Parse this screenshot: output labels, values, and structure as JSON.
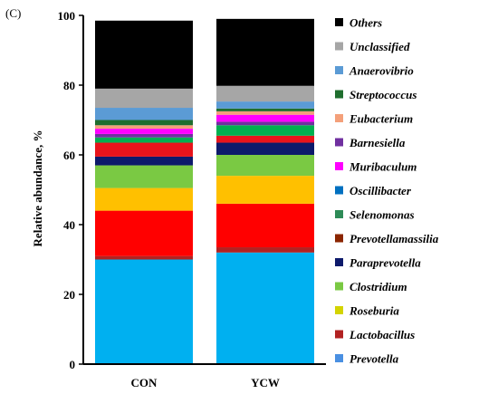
{
  "panel_label": "(C)",
  "chart_data": {
    "type": "bar",
    "stacked": true,
    "categories": [
      "CON",
      "YCW"
    ],
    "ylabel": "Relative abundance, %",
    "ylim": [
      0,
      100
    ],
    "yticks": [
      0,
      20,
      40,
      60,
      80,
      100
    ],
    "legend_position": "right",
    "series": [
      {
        "name": "Prevotella",
        "color": "#00b0f0",
        "values": [
          30.0,
          32.0
        ]
      },
      {
        "name": "Lactobacillus",
        "color": "#b22222",
        "values": [
          1.0,
          1.5
        ]
      },
      {
        "name": "Roseburia",
        "color": "#ff0000",
        "values": [
          13.0,
          12.5
        ]
      },
      {
        "name": "Clostridium",
        "color": "#ffc000",
        "values": [
          6.5,
          8.0
        ]
      },
      {
        "name": "Paraprevotella",
        "color": "#7ac943",
        "values": [
          6.5,
          6.0
        ]
      },
      {
        "name": "Prevotellamassilia",
        "color": "#0d1a6b",
        "values": [
          2.5,
          3.5
        ]
      },
      {
        "name": "Selenomonas",
        "color": "#e8141b",
        "values": [
          4.0,
          2.0
        ]
      },
      {
        "name": "Oscillibacter",
        "color": "#00b050",
        "values": [
          1.5,
          3.0
        ]
      },
      {
        "name": "Muribaculum",
        "color": "#7030a0",
        "values": [
          1.0,
          1.0
        ]
      },
      {
        "name": "Barnesiella",
        "color": "#ff00ff",
        "values": [
          1.5,
          2.0
        ]
      },
      {
        "name": "Eubacterium",
        "color": "#f4a07a",
        "values": [
          1.0,
          1.0
        ]
      },
      {
        "name": "Streptococcus",
        "color": "#1f6e2e",
        "values": [
          1.5,
          0.8
        ]
      },
      {
        "name": "Anaerovibrio",
        "color": "#5b9bd5",
        "values": [
          3.5,
          2.0
        ]
      },
      {
        "name": "Unclassified",
        "color": "#a6a6a6",
        "values": [
          5.5,
          4.5
        ]
      },
      {
        "name": "Others",
        "color": "#000000",
        "values": [
          19.5,
          19.2
        ]
      }
    ],
    "legend": [
      {
        "label": "Others",
        "color": "#000000"
      },
      {
        "label": "Unclassified",
        "color": "#a6a6a6"
      },
      {
        "label": "Anaerovibrio",
        "color": "#5b9bd5"
      },
      {
        "label": "Streptococcus",
        "color": "#1f6e2e"
      },
      {
        "label": "Eubacterium",
        "color": "#f4a07a"
      },
      {
        "label": "Barnesiella",
        "color": "#7030a0"
      },
      {
        "label": "Muribaculum",
        "color": "#ff00ff"
      },
      {
        "label": "Oscillibacter",
        "color": "#0070c0"
      },
      {
        "label": "Selenomonas",
        "color": "#2e8b57"
      },
      {
        "label": "Prevotellamassilia",
        "color": "#8b2500"
      },
      {
        "label": "Paraprevotella",
        "color": "#0d1a6b"
      },
      {
        "label": "Clostridium",
        "color": "#7ac943"
      },
      {
        "label": "Roseburia",
        "color": "#d4d400"
      },
      {
        "label": "Lactobacillus",
        "color": "#b22222"
      },
      {
        "label": "Prevotella",
        "color": "#4a90e2"
      }
    ]
  }
}
